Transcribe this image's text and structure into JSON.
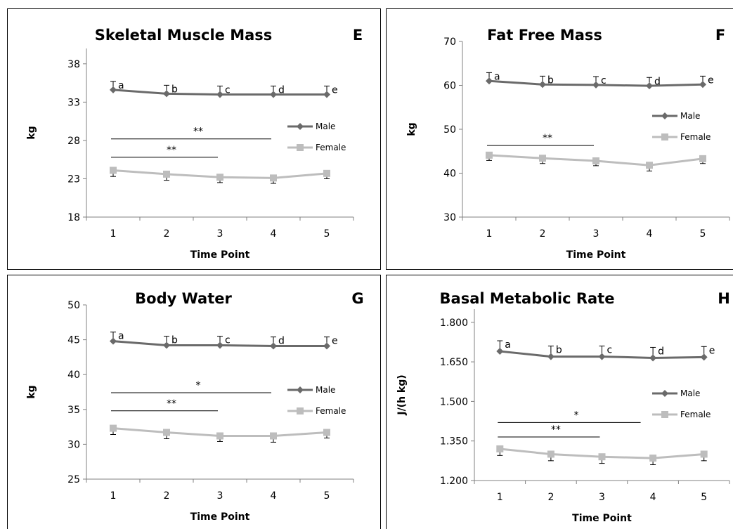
{
  "colors": {
    "male": "#6a6a6a",
    "female": "#bdbdbd",
    "axis": "#808080",
    "text": "#000000"
  },
  "chart_data": [
    {
      "id": "e",
      "type": "line",
      "title": "Skeletal Muscle Mass",
      "panel_letter": "E",
      "xlabel": "Time Point",
      "ylabel": "kg",
      "categories": [
        "1",
        "2",
        "3",
        "4",
        "5"
      ],
      "yticks": [
        "18",
        "23",
        "28",
        "33",
        "38"
      ],
      "ylim": [
        18,
        40
      ],
      "series": [
        {
          "name": "Male",
          "marker": "diamond",
          "values": [
            34.6,
            34.1,
            34.0,
            34.0,
            34.0
          ],
          "err_up": [
            1.1,
            1.1,
            1.1,
            1.1,
            1.1
          ],
          "err_down": [
            0,
            0,
            0,
            0,
            0
          ],
          "labels": [
            "a",
            "b",
            "c",
            "d",
            "e"
          ]
        },
        {
          "name": "Female",
          "marker": "square",
          "values": [
            24.1,
            23.6,
            23.2,
            23.1,
            23.7
          ],
          "err_up": [
            0,
            0,
            0,
            0,
            0
          ],
          "err_down": [
            0.8,
            0.8,
            0.7,
            0.7,
            0.7
          ],
          "labels": []
        }
      ],
      "significance": [
        {
          "label": "**",
          "from": 1,
          "to": 4,
          "y": 28.2
        },
        {
          "label": "**",
          "from": 1,
          "to": 3,
          "y": 25.8
        }
      ],
      "legend_position": "right"
    },
    {
      "id": "f",
      "type": "line",
      "title": "Fat Free Mass",
      "panel_letter": "F",
      "xlabel": "Time Point",
      "ylabel": "kg",
      "categories": [
        "1",
        "2",
        "3",
        "4",
        "5"
      ],
      "yticks": [
        "30",
        "40",
        "50",
        "60",
        "70"
      ],
      "ylim": [
        30,
        70
      ],
      "series": [
        {
          "name": "Male",
          "marker": "diamond",
          "values": [
            61.0,
            60.2,
            60.1,
            59.9,
            60.2
          ],
          "err_up": [
            1.9,
            1.9,
            1.9,
            1.9,
            1.9
          ],
          "err_down": [
            0,
            0,
            0,
            0,
            0
          ],
          "labels": [
            "a",
            "b",
            "c",
            "d",
            "e"
          ]
        },
        {
          "name": "Female",
          "marker": "square",
          "values": [
            44.1,
            43.4,
            42.8,
            41.8,
            43.3
          ],
          "err_up": [
            0,
            0,
            0,
            0,
            0
          ],
          "err_down": [
            1.2,
            1.2,
            1.1,
            1.3,
            1.1
          ],
          "labels": []
        }
      ],
      "significance": [
        {
          "label": "**",
          "from": 1,
          "to": 3,
          "y": 46.3
        }
      ],
      "legend_position": "right"
    },
    {
      "id": "g",
      "type": "line",
      "title": "Body Water",
      "panel_letter": "G",
      "xlabel": "Time Point",
      "ylabel": "kg",
      "categories": [
        "1",
        "2",
        "3",
        "4",
        "5"
      ],
      "yticks": [
        "25",
        "30",
        "35",
        "40",
        "45",
        "50"
      ],
      "ylim": [
        25,
        50
      ],
      "series": [
        {
          "name": "Male",
          "marker": "diamond",
          "values": [
            44.8,
            44.2,
            44.2,
            44.1,
            44.1
          ],
          "err_up": [
            1.3,
            1.3,
            1.3,
            1.3,
            1.3
          ],
          "err_down": [
            0,
            0,
            0,
            0,
            0
          ],
          "labels": [
            "a",
            "b",
            "c",
            "d",
            "e"
          ]
        },
        {
          "name": "Female",
          "marker": "square",
          "values": [
            32.3,
            31.7,
            31.2,
            31.2,
            31.7
          ],
          "err_up": [
            0,
            0,
            0,
            0,
            0
          ],
          "err_down": [
            0.9,
            0.9,
            0.8,
            0.9,
            0.8
          ],
          "labels": []
        }
      ],
      "significance": [
        {
          "label": "*",
          "from": 1,
          "to": 4,
          "y": 37.4
        },
        {
          "label": "**",
          "from": 1,
          "to": 3,
          "y": 34.8
        }
      ],
      "legend_position": "right"
    },
    {
      "id": "h",
      "type": "line",
      "title": "Basal Metabolic Rate",
      "panel_letter": "H",
      "xlabel": "Time Point",
      "ylabel": "J/(h kg)",
      "categories": [
        "1",
        "2",
        "3",
        "4",
        "5"
      ],
      "yticks": [
        "1.200",
        "1.350",
        "1.500",
        "1.650",
        "1.800"
      ],
      "ylim": [
        1.2,
        1.85
      ],
      "series": [
        {
          "name": "Male",
          "marker": "diamond",
          "values": [
            1.69,
            1.67,
            1.67,
            1.665,
            1.668
          ],
          "err_up": [
            0.04,
            0.04,
            0.04,
            0.04,
            0.04
          ],
          "err_down": [
            0,
            0,
            0,
            0,
            0
          ],
          "labels": [
            "a",
            "b",
            "c",
            "d",
            "e"
          ]
        },
        {
          "name": "Female",
          "marker": "square",
          "values": [
            1.32,
            1.3,
            1.29,
            1.285,
            1.3
          ],
          "err_up": [
            0,
            0,
            0,
            0,
            0
          ],
          "err_down": [
            0.025,
            0.025,
            0.025,
            0.025,
            0.025
          ],
          "labels": []
        }
      ],
      "significance": [
        {
          "label": "*",
          "from": 1,
          "to": 3.8,
          "y": 1.42
        },
        {
          "label": "**",
          "from": 1,
          "to": 3,
          "y": 1.365
        }
      ],
      "legend_position": "right"
    }
  ]
}
